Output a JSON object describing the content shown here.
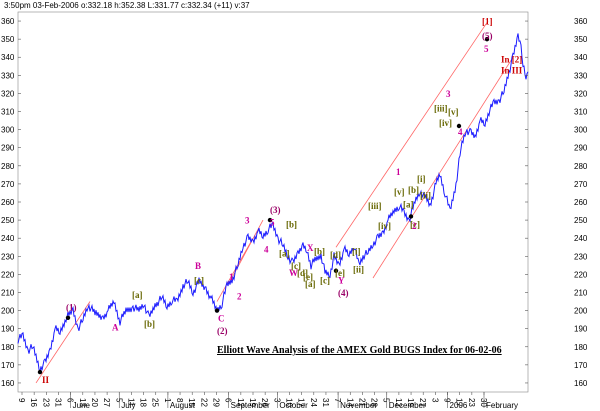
{
  "header_text": "3:50pm 03-Feb-2006  o:332.18 h:352.38 L:331.77 c:332.34 (+11) v:37",
  "colors": {
    "price": "#1a1aff",
    "channel": "#ff6666",
    "label_purple": "#990066",
    "label_magenta": "#cc0099",
    "label_olive": "#666600",
    "label_red": "#cc0000",
    "grid": "#cccccc"
  },
  "chart_data": {
    "type": "line",
    "title": "Elliott Wave Analysis of the AMEX Gold BUGS Index for 06-02-06",
    "ylim": [
      155,
      365
    ],
    "yticks": [
      160,
      170,
      180,
      190,
      200,
      210,
      220,
      230,
      240,
      250,
      260,
      270,
      280,
      290,
      300,
      310,
      320,
      330,
      340,
      350,
      360
    ],
    "day_ticks": [
      "9",
      "16",
      "23",
      "31",
      "6",
      "13",
      "20",
      "27",
      "5",
      "11",
      "18",
      "25",
      "1",
      "8",
      "15",
      "22",
      "29",
      "6",
      "12",
      "19",
      "26",
      "3",
      "10",
      "17",
      "24",
      "31",
      "7",
      "14",
      "21",
      "28",
      "5",
      "12",
      "19",
      "27",
      "3",
      "9",
      "17",
      "23",
      "30"
    ],
    "month_labels": [
      "June",
      "July",
      "August",
      "September",
      "October",
      "November",
      "December",
      "2006",
      "February"
    ],
    "series": [
      {
        "values": [
          [
            0,
            184
          ],
          [
            5,
            186
          ],
          [
            10,
            178
          ],
          [
            15,
            180
          ],
          [
            22,
            168
          ],
          [
            27,
            171
          ],
          [
            32,
            178
          ],
          [
            37,
            190
          ],
          [
            42,
            188
          ],
          [
            48,
            196
          ],
          [
            55,
            200
          ],
          [
            60,
            190
          ],
          [
            65,
            195
          ],
          [
            70,
            203
          ],
          [
            78,
            198
          ],
          [
            85,
            196
          ],
          [
            90,
            200
          ],
          [
            96,
            205
          ],
          [
            102,
            194
          ],
          [
            108,
            200
          ],
          [
            115,
            202
          ],
          [
            121,
            200
          ],
          [
            126,
            204
          ],
          [
            131,
            196
          ],
          [
            137,
            203
          ],
          [
            144,
            207
          ],
          [
            149,
            202
          ],
          [
            154,
            206
          ],
          [
            159,
            205
          ],
          [
            165,
            214
          ],
          [
            170,
            216
          ],
          [
            175,
            210
          ],
          [
            181,
            216
          ],
          [
            188,
            212
          ],
          [
            193,
            207
          ],
          [
            199,
            200
          ],
          [
            204,
            204
          ],
          [
            209,
            214
          ],
          [
            215,
            218
          ],
          [
            220,
            225
          ],
          [
            225,
            236
          ],
          [
            230,
            240
          ],
          [
            235,
            238
          ],
          [
            240,
            244
          ],
          [
            245,
            241
          ],
          [
            250,
            245
          ],
          [
            255,
            247
          ],
          [
            260,
            240
          ],
          [
            265,
            236
          ],
          [
            270,
            230
          ],
          [
            275,
            226
          ],
          [
            280,
            232
          ],
          [
            284,
            236
          ],
          [
            289,
            233
          ],
          [
            293,
            225
          ],
          [
            297,
            228
          ],
          [
            303,
            231
          ],
          [
            307,
            221
          ],
          [
            312,
            220
          ],
          [
            316,
            230
          ],
          [
            321,
            225
          ],
          [
            326,
            234
          ],
          [
            331,
            231
          ],
          [
            336,
            236
          ],
          [
            341,
            225
          ],
          [
            345,
            230
          ],
          [
            350,
            232
          ],
          [
            355,
            237
          ],
          [
            360,
            240
          ],
          [
            365,
            243
          ],
          [
            370,
            250
          ],
          [
            376,
            255
          ],
          [
            381,
            258
          ],
          [
            386,
            254
          ],
          [
            391,
            250
          ],
          [
            397,
            260
          ],
          [
            402,
            266
          ],
          [
            408,
            262
          ],
          [
            412,
            258
          ],
          [
            418,
            270
          ],
          [
            422,
            275
          ],
          [
            427,
            265
          ],
          [
            432,
            255
          ],
          [
            438,
            270
          ],
          [
            443,
            290
          ],
          [
            448,
            300
          ],
          [
            453,
            298
          ],
          [
            457,
            296
          ],
          [
            462,
            305
          ],
          [
            467,
            303
          ],
          [
            471,
            310
          ],
          [
            476,
            315
          ],
          [
            481,
            316
          ],
          [
            486,
            321
          ],
          [
            490,
            330
          ],
          [
            495,
            340
          ],
          [
            500,
            352
          ],
          [
            502,
            349
          ],
          [
            505,
            336
          ],
          [
            508,
            330
          ],
          [
            510,
            332
          ]
        ]
      }
    ],
    "annotations": [
      {
        "text": "II",
        "x": 24,
        "y": 160,
        "color": "label_red"
      },
      {
        "text": "(1)",
        "x": 48,
        "y": 200,
        "color": "label_purple"
      },
      {
        "text": "A",
        "x": 94,
        "y": 189,
        "color": "label_magenta"
      },
      {
        "text": "[a]",
        "x": 114,
        "y": 207,
        "color": "label_olive"
      },
      {
        "text": "[b]",
        "x": 126,
        "y": 191,
        "color": "label_olive"
      },
      {
        "text": "B",
        "x": 177,
        "y": 223,
        "color": "label_magenta"
      },
      {
        "text": "[c]",
        "x": 176,
        "y": 215,
        "color": "label_olive"
      },
      {
        "text": "C",
        "x": 200,
        "y": 194,
        "color": "label_magenta"
      },
      {
        "text": "(2)",
        "x": 199,
        "y": 187,
        "color": "label_purple"
      },
      {
        "text": "1",
        "x": 211,
        "y": 217,
        "color": "label_magenta"
      },
      {
        "text": "2",
        "x": 219,
        "y": 206,
        "color": "label_magenta"
      },
      {
        "text": "3",
        "x": 227,
        "y": 248,
        "color": "label_magenta"
      },
      {
        "text": "4",
        "x": 246,
        "y": 232,
        "color": "label_magenta"
      },
      {
        "text": "(3)",
        "x": 252,
        "y": 254,
        "color": "label_purple"
      },
      {
        "text": "5",
        "x": 252,
        "y": 247,
        "color": "label_magenta"
      },
      {
        "text": "[a]",
        "x": 261,
        "y": 230,
        "color": "label_olive"
      },
      {
        "text": "[b]",
        "x": 268,
        "y": 246,
        "color": "label_olive"
      },
      {
        "text": "[c]",
        "x": 273,
        "y": 223,
        "color": "label_olive"
      },
      {
        "text": "[d]",
        "x": 279,
        "y": 219,
        "color": "label_olive"
      },
      {
        "text": "[e]",
        "x": 285,
        "y": 217,
        "color": "label_olive"
      },
      {
        "text": "W",
        "x": 271,
        "y": 219,
        "color": "label_magenta"
      },
      {
        "text": "X",
        "x": 289,
        "y": 233,
        "color": "label_magenta"
      },
      {
        "text": "[a]",
        "x": 287,
        "y": 213,
        "color": "label_olive"
      },
      {
        "text": "[b]",
        "x": 296,
        "y": 231,
        "color": "label_olive"
      },
      {
        "text": "[c]",
        "x": 302,
        "y": 215,
        "color": "label_olive"
      },
      {
        "text": "[d]",
        "x": 312,
        "y": 229,
        "color": "label_olive"
      },
      {
        "text": "[e]",
        "x": 317,
        "y": 219,
        "color": "label_olive"
      },
      {
        "text": "Y",
        "x": 320,
        "y": 215,
        "color": "label_magenta"
      },
      {
        "text": "(4)",
        "x": 320,
        "y": 208,
        "color": "label_purple"
      },
      {
        "text": "[i]",
        "x": 334,
        "y": 231,
        "color": "label_olive"
      },
      {
        "text": "[ii]",
        "x": 335,
        "y": 221,
        "color": "label_olive"
      },
      {
        "text": "[iii]",
        "x": 350,
        "y": 256,
        "color": "label_olive"
      },
      {
        "text": "[iv]",
        "x": 360,
        "y": 245,
        "color": "label_olive"
      },
      {
        "text": "[v]",
        "x": 376,
        "y": 264,
        "color": "label_olive"
      },
      {
        "text": "1",
        "x": 378,
        "y": 275,
        "color": "label_magenta"
      },
      {
        "text": "[a]",
        "x": 385,
        "y": 257,
        "color": "label_olive"
      },
      {
        "text": "[b]",
        "x": 390,
        "y": 265,
        "color": "label_olive"
      },
      {
        "text": "[c]",
        "x": 392,
        "y": 246,
        "color": "label_olive"
      },
      {
        "text": "2",
        "x": 394,
        "y": 245,
        "color": "label_magenta"
      },
      {
        "text": "[i]",
        "x": 399,
        "y": 271,
        "color": "label_olive"
      },
      {
        "text": "[ii]",
        "x": 402,
        "y": 262,
        "color": "label_olive"
      },
      {
        "text": "[iii]",
        "x": 416,
        "y": 310,
        "color": "label_olive"
      },
      {
        "text": "[iv]",
        "x": 421,
        "y": 302,
        "color": "label_olive"
      },
      {
        "text": "[v]",
        "x": 430,
        "y": 308,
        "color": "label_olive"
      },
      {
        "text": "3",
        "x": 428,
        "y": 318,
        "color": "label_magenta"
      },
      {
        "text": "4",
        "x": 440,
        "y": 297,
        "color": "label_magenta"
      },
      {
        "text": "[1]",
        "x": 464,
        "y": 358,
        "color": "label_red"
      },
      {
        "text": "(5)",
        "x": 464,
        "y": 350,
        "color": "label_purple"
      },
      {
        "text": "5",
        "x": 466,
        "y": 343,
        "color": "label_magenta"
      },
      {
        "text": "In [2]",
        "x": 483,
        "y": 337,
        "color": "label_red"
      },
      {
        "text": "In III",
        "x": 483,
        "y": 331,
        "color": "label_red"
      }
    ],
    "pivots": [
      {
        "x": 22,
        "y": 166
      },
      {
        "x": 50,
        "y": 196
      },
      {
        "x": 199,
        "y": 200
      },
      {
        "x": 252,
        "y": 250
      },
      {
        "x": 318,
        "y": 222
      },
      {
        "x": 393,
        "y": 252
      },
      {
        "x": 441,
        "y": 302
      },
      {
        "x": 469,
        "y": 350
      }
    ],
    "channel_lines": [
      {
        "from": [
          18,
          160
        ],
        "to": [
          72,
          205
        ]
      },
      {
        "from": [
          199,
          205
        ],
        "to": [
          235,
          240
        ]
      },
      {
        "from": [
          211,
          215
        ],
        "to": [
          245,
          250
        ]
      },
      {
        "from": [
          318,
          235
        ],
        "to": [
          470,
          360
        ]
      },
      {
        "from": [
          355,
          218
        ],
        "to": [
          495,
          340
        ]
      }
    ]
  }
}
